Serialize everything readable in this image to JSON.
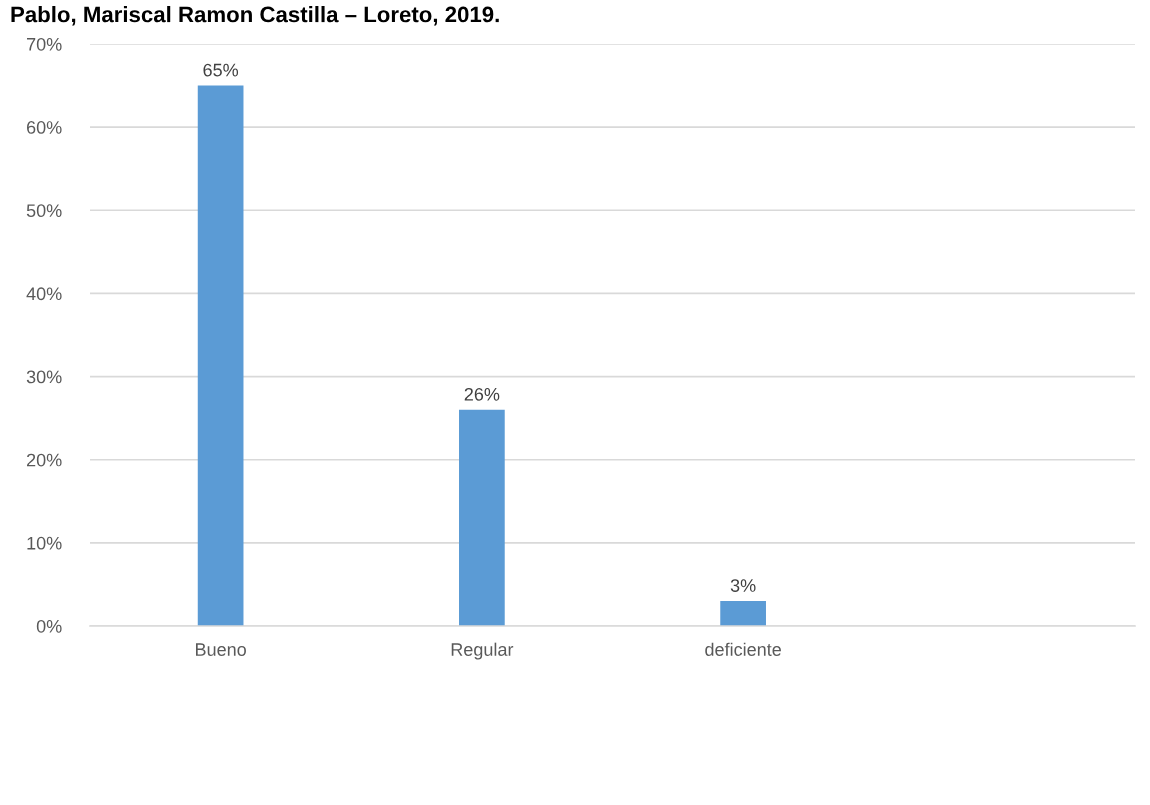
{
  "chart_data": {
    "type": "bar",
    "title": "Pablo, Mariscal Ramon Castilla – Loreto, 2019.",
    "categories": [
      "Bueno",
      "Regular",
      "deficiente",
      null
    ],
    "values": [
      65,
      26,
      3,
      null
    ],
    "value_labels": [
      "65%",
      "26%",
      "3%",
      null
    ],
    "color": "#5b9bd5",
    "ylim": [
      0,
      70
    ],
    "yticks": [
      {
        "value": 0,
        "label": "0%"
      },
      {
        "value": 10,
        "label": "10%"
      },
      {
        "value": 20,
        "label": "20%"
      },
      {
        "value": 30,
        "label": "30%"
      },
      {
        "value": 40,
        "label": "40%"
      },
      {
        "value": 50,
        "label": "50%"
      },
      {
        "value": 60,
        "label": "60%"
      },
      {
        "value": 70,
        "label": "70%"
      }
    ],
    "grid": "y",
    "legend": false
  }
}
